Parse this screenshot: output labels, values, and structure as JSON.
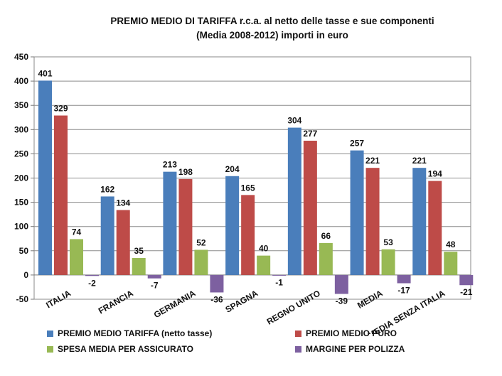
{
  "chart_data": {
    "type": "bar",
    "title": "PREMIO MEDIO DI TARIFFA r.c.a. al netto delle tasse e sue componenti",
    "subtitle": "(Media 2008-2012)  importi in euro",
    "xlabel": "",
    "ylabel": "",
    "ylim": [
      -50,
      450
    ],
    "yticks": [
      -50,
      0,
      50,
      100,
      150,
      200,
      250,
      300,
      350,
      400,
      450
    ],
    "grid": true,
    "legend_position": "bottom",
    "categories": [
      "ITALIA",
      "FRANCIA",
      "GERMANIA",
      "SPAGNA",
      "REGNO UNITO",
      "MEDIA",
      "MEDIA SENZA ITALIA"
    ],
    "series": [
      {
        "name": "PREMIO MEDIO TARIFFA (netto tasse)",
        "color": "#4A7EBB",
        "values": [
          401,
          162,
          213,
          204,
          304,
          257,
          221
        ]
      },
      {
        "name": "PREMIO MEDIO PURO",
        "color": "#BE4B48",
        "values": [
          329,
          134,
          198,
          165,
          277,
          221,
          194
        ]
      },
      {
        "name": "SPESA MEDIA PER ASSICURATO",
        "color": "#98B954",
        "values": [
          74,
          35,
          52,
          40,
          66,
          53,
          48
        ]
      },
      {
        "name": "MARGINE  PER POLIZZA",
        "color": "#7D60A0",
        "values": [
          -2,
          -7,
          -36,
          -1,
          -39,
          -17,
          -21
        ]
      }
    ]
  }
}
